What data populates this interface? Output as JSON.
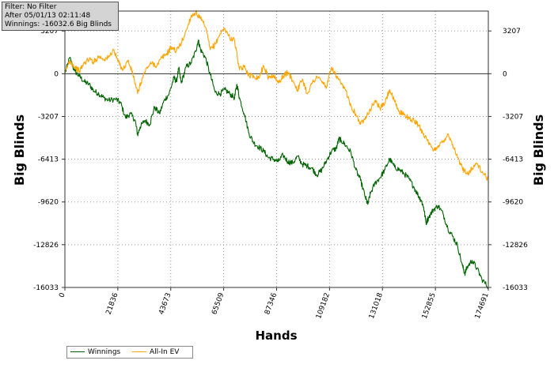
{
  "info": {
    "filter": "Filter: No Filter",
    "after": "After 05/01/13 02:11:48",
    "winnings": "Winnings: -16032.6 Big Blinds"
  },
  "chart_data": {
    "type": "line",
    "xlabel": "Hands",
    "ylabel": "Big Blinds",
    "ylabel_right": "Big Blinds",
    "xlim": [
      0,
      174691
    ],
    "ylim": [
      -16033,
      4700
    ],
    "x_ticks": [
      0,
      21836,
      43673,
      65509,
      87346,
      109182,
      131018,
      152855,
      174691
    ],
    "y_ticks": [
      3207,
      0,
      -3207,
      -6413,
      -9620,
      -12826,
      -16033
    ],
    "grid": true,
    "legend": "bottom-left",
    "series": [
      {
        "name": "Winnings",
        "color": "#006400",
        "points": [
          [
            0,
            0
          ],
          [
            2000,
            1200
          ],
          [
            4000,
            200
          ],
          [
            6000,
            -200
          ],
          [
            8000,
            -600
          ],
          [
            10000,
            -800
          ],
          [
            12000,
            -1300
          ],
          [
            14000,
            -1500
          ],
          [
            16000,
            -1800
          ],
          [
            18000,
            -2000
          ],
          [
            21000,
            -1900
          ],
          [
            23000,
            -2200
          ],
          [
            25000,
            -3300
          ],
          [
            27000,
            -3000
          ],
          [
            29000,
            -3500
          ],
          [
            30000,
            -4600
          ],
          [
            31000,
            -4000
          ],
          [
            33000,
            -3500
          ],
          [
            35000,
            -3800
          ],
          [
            37000,
            -2500
          ],
          [
            39000,
            -3000
          ],
          [
            41000,
            -2000
          ],
          [
            43000,
            -1500
          ],
          [
            45000,
            -300
          ],
          [
            46000,
            -600
          ],
          [
            47000,
            400
          ],
          [
            48000,
            -700
          ],
          [
            50000,
            500
          ],
          [
            52000,
            800
          ],
          [
            54000,
            1700
          ],
          [
            55000,
            2500
          ],
          [
            56000,
            1800
          ],
          [
            58000,
            1200
          ],
          [
            60000,
            -100
          ],
          [
            62000,
            -1400
          ],
          [
            64000,
            -1500
          ],
          [
            66000,
            -1200
          ],
          [
            68000,
            -1500
          ],
          [
            70000,
            -1800
          ],
          [
            71000,
            -800
          ],
          [
            72000,
            -1800
          ],
          [
            74000,
            -3000
          ],
          [
            76000,
            -4500
          ],
          [
            78000,
            -5200
          ],
          [
            80000,
            -5500
          ],
          [
            82000,
            -5800
          ],
          [
            84000,
            -6300
          ],
          [
            86000,
            -6400
          ],
          [
            88000,
            -6600
          ],
          [
            90000,
            -6100
          ],
          [
            92000,
            -6600
          ],
          [
            94000,
            -6700
          ],
          [
            96000,
            -6200
          ],
          [
            98000,
            -6800
          ],
          [
            100000,
            -6900
          ],
          [
            102000,
            -7100
          ],
          [
            104000,
            -7600
          ],
          [
            106000,
            -7200
          ],
          [
            108000,
            -6500
          ],
          [
            110000,
            -5800
          ],
          [
            112000,
            -5600
          ],
          [
            113000,
            -4900
          ],
          [
            114000,
            -5000
          ],
          [
            116000,
            -5400
          ],
          [
            118000,
            -5900
          ],
          [
            120000,
            -7200
          ],
          [
            122000,
            -8000
          ],
          [
            124000,
            -9300
          ],
          [
            125000,
            -9800
          ],
          [
            126000,
            -9000
          ],
          [
            128000,
            -8200
          ],
          [
            130000,
            -7800
          ],
          [
            132000,
            -7200
          ],
          [
            134000,
            -6400
          ],
          [
            136000,
            -7000
          ],
          [
            138000,
            -7200
          ],
          [
            140000,
            -7500
          ],
          [
            142000,
            -7900
          ],
          [
            144000,
            -8500
          ],
          [
            146000,
            -9200
          ],
          [
            147000,
            -9500
          ],
          [
            148000,
            -10000
          ],
          [
            149000,
            -11200
          ],
          [
            150000,
            -10800
          ],
          [
            152000,
            -10200
          ],
          [
            154000,
            -9900
          ],
          [
            156000,
            -10500
          ],
          [
            158000,
            -11600
          ],
          [
            160000,
            -12200
          ],
          [
            162000,
            -12900
          ],
          [
            164000,
            -14400
          ],
          [
            165000,
            -15000
          ],
          [
            166000,
            -14500
          ],
          [
            168000,
            -14000
          ],
          [
            170000,
            -14600
          ],
          [
            172000,
            -15400
          ],
          [
            174691,
            -16033
          ]
        ]
      },
      {
        "name": "All-In EV",
        "color": "#FFA500",
        "points": [
          [
            0,
            0
          ],
          [
            2000,
            1000
          ],
          [
            4000,
            500
          ],
          [
            6000,
            200
          ],
          [
            8000,
            800
          ],
          [
            10000,
            1100
          ],
          [
            12000,
            900
          ],
          [
            14000,
            1300
          ],
          [
            16000,
            1100
          ],
          [
            18000,
            1200
          ],
          [
            20000,
            1800
          ],
          [
            22000,
            900
          ],
          [
            24000,
            300
          ],
          [
            26000,
            1000
          ],
          [
            28000,
            0
          ],
          [
            30000,
            -1500
          ],
          [
            32000,
            -300
          ],
          [
            34000,
            500
          ],
          [
            36000,
            800
          ],
          [
            38000,
            600
          ],
          [
            40000,
            1200
          ],
          [
            42000,
            1500
          ],
          [
            44000,
            2000
          ],
          [
            46000,
            1700
          ],
          [
            48000,
            2300
          ],
          [
            50000,
            3200
          ],
          [
            52000,
            4300
          ],
          [
            54000,
            4600
          ],
          [
            56000,
            4100
          ],
          [
            58000,
            3500
          ],
          [
            60000,
            1800
          ],
          [
            62000,
            2200
          ],
          [
            64000,
            3000
          ],
          [
            66000,
            3400
          ],
          [
            68000,
            2700
          ],
          [
            70000,
            2500
          ],
          [
            72000,
            300
          ],
          [
            74000,
            500
          ],
          [
            76000,
            -100
          ],
          [
            78000,
            -200
          ],
          [
            80000,
            -300
          ],
          [
            82000,
            600
          ],
          [
            84000,
            -300
          ],
          [
            86000,
            -100
          ],
          [
            88000,
            -700
          ],
          [
            90000,
            -200
          ],
          [
            92000,
            100
          ],
          [
            94000,
            -500
          ],
          [
            96000,
            -1200
          ],
          [
            98000,
            -400
          ],
          [
            100000,
            -1500
          ],
          [
            102000,
            -700
          ],
          [
            104000,
            -200
          ],
          [
            106000,
            -600
          ],
          [
            108000,
            -1000
          ],
          [
            110000,
            500
          ],
          [
            112000,
            -200
          ],
          [
            114000,
            -800
          ],
          [
            116000,
            -1300
          ],
          [
            118000,
            -2400
          ],
          [
            120000,
            -3000
          ],
          [
            122000,
            -3800
          ],
          [
            124000,
            -3200
          ],
          [
            126000,
            -2700
          ],
          [
            128000,
            -2000
          ],
          [
            130000,
            -2600
          ],
          [
            132000,
            -2200
          ],
          [
            134000,
            -1200
          ],
          [
            136000,
            -2100
          ],
          [
            138000,
            -2900
          ],
          [
            140000,
            -3000
          ],
          [
            142000,
            -3400
          ],
          [
            144000,
            -3500
          ],
          [
            146000,
            -3900
          ],
          [
            148000,
            -4500
          ],
          [
            150000,
            -5200
          ],
          [
            152000,
            -5800
          ],
          [
            154000,
            -5400
          ],
          [
            156000,
            -5100
          ],
          [
            158000,
            -4500
          ],
          [
            160000,
            -5300
          ],
          [
            162000,
            -6300
          ],
          [
            164000,
            -7100
          ],
          [
            166000,
            -7500
          ],
          [
            168000,
            -7100
          ],
          [
            170000,
            -6700
          ],
          [
            172000,
            -7400
          ],
          [
            174691,
            -7900
          ]
        ]
      }
    ]
  }
}
